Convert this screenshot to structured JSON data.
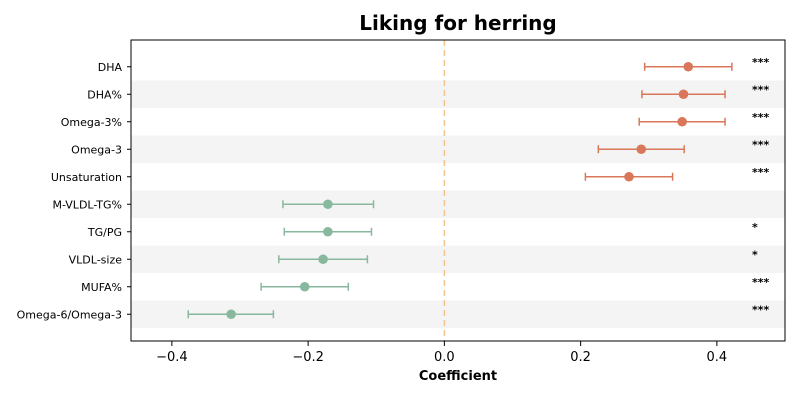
{
  "chart_data": {
    "type": "scatter",
    "title": "Liking for herring",
    "xlabel": "Coefficient",
    "ylabel": "",
    "xlim": [
      -0.46,
      0.5
    ],
    "xticks": [
      -0.4,
      -0.2,
      0.0,
      0.2,
      0.4
    ],
    "xtick_labels": [
      "−0.4",
      "−0.2",
      "0.0",
      "0.2",
      "0.4"
    ],
    "reference_line": {
      "x": 0.0,
      "style": "dashed",
      "color": "#f5c48a"
    },
    "row_shading": "alternating",
    "colors": {
      "positive": "#d9775a",
      "negative": "#88b89d",
      "shade": "#f4f4f4"
    },
    "rows": [
      {
        "label": "DHA",
        "coef": 0.358,
        "lo": 0.294,
        "hi": 0.422,
        "sig": "***"
      },
      {
        "label": "DHA%",
        "coef": 0.351,
        "lo": 0.29,
        "hi": 0.412,
        "sig": "***"
      },
      {
        "label": "Omega-3%",
        "coef": 0.349,
        "lo": 0.286,
        "hi": 0.412,
        "sig": "***"
      },
      {
        "label": "Omega-3",
        "coef": 0.289,
        "lo": 0.226,
        "hi": 0.352,
        "sig": "***"
      },
      {
        "label": "Unsaturation",
        "coef": 0.271,
        "lo": 0.207,
        "hi": 0.335,
        "sig": "***"
      },
      {
        "label": "M-VLDL-TG%",
        "coef": -0.171,
        "lo": -0.237,
        "hi": -0.104,
        "sig": ""
      },
      {
        "label": "TG/PG",
        "coef": -0.171,
        "lo": -0.235,
        "hi": -0.107,
        "sig": "*"
      },
      {
        "label": "VLDL-size",
        "coef": -0.178,
        "lo": -0.243,
        "hi": -0.113,
        "sig": "*"
      },
      {
        "label": "MUFA%",
        "coef": -0.205,
        "lo": -0.269,
        "hi": -0.141,
        "sig": "***"
      },
      {
        "label": "Omega-6/Omega-3",
        "coef": -0.313,
        "lo": -0.376,
        "hi": -0.251,
        "sig": "***"
      }
    ]
  }
}
